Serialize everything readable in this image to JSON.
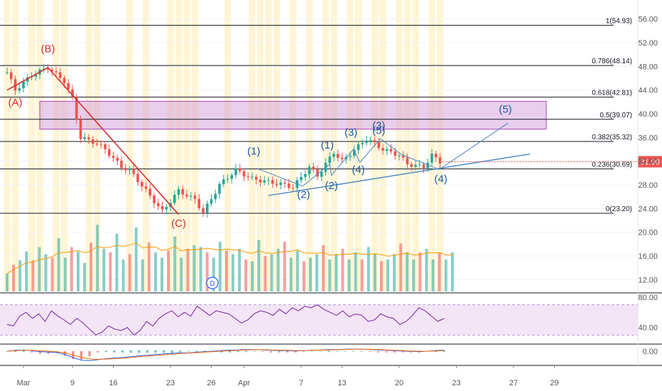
{
  "chart_data": [
    {
      "type": "candlestick",
      "panel": "price",
      "x_ticks": [
        "Mar",
        "9",
        "16",
        "23",
        "26",
        "Apr",
        "7",
        "13",
        "20",
        "23",
        "27",
        "29"
      ],
      "y_ticks": [
        "56.00",
        "52.00",
        "48.00",
        "44.00",
        "40.00",
        "36.00",
        "32.00",
        "28.00",
        "24.00",
        "20.00",
        "16.00",
        "12.00"
      ],
      "ylim": [
        10,
        58
      ],
      "last_price": {
        "value": 31.9,
        "label": "31.90",
        "color": "#ef5350"
      },
      "price_path": [
        {
          "day": 0,
          "close": 47.0
        },
        {
          "day": 1,
          "close": 44.0
        },
        {
          "day": 3,
          "close": 46.5
        },
        {
          "day": 5,
          "close": 47.8
        },
        {
          "day": 7,
          "close": 45.5
        },
        {
          "day": 8,
          "close": 42.5
        },
        {
          "day": 9,
          "close": 36.0
        },
        {
          "day": 11,
          "close": 35.0
        },
        {
          "day": 12,
          "close": 34.0
        },
        {
          "day": 14,
          "close": 31.0
        },
        {
          "day": 15,
          "close": 30.5
        },
        {
          "day": 17,
          "close": 27.0
        },
        {
          "day": 19,
          "close": 23.5
        },
        {
          "day": 21,
          "close": 27.0
        },
        {
          "day": 23,
          "close": 25.5
        },
        {
          "day": 24,
          "close": 23.3
        },
        {
          "day": 26,
          "close": 28.0
        },
        {
          "day": 28,
          "close": 30.5
        },
        {
          "day": 30,
          "close": 29.0
        },
        {
          "day": 32,
          "close": 28.5
        },
        {
          "day": 34,
          "close": 28.0
        },
        {
          "day": 35,
          "close": 27.6
        },
        {
          "day": 37,
          "close": 31.0
        },
        {
          "day": 38,
          "close": 29.5
        },
        {
          "day": 40,
          "close": 33.5
        },
        {
          "day": 41,
          "close": 32.0
        },
        {
          "day": 43,
          "close": 34.5
        },
        {
          "day": 44,
          "close": 35.8
        },
        {
          "day": 46,
          "close": 34.0
        },
        {
          "day": 48,
          "close": 33.0
        },
        {
          "day": 49,
          "close": 31.5
        },
        {
          "day": 51,
          "close": 31.0
        },
        {
          "day": 52,
          "close": 33.0
        },
        {
          "day": 53,
          "close": 31.9
        }
      ],
      "fibonacci": [
        {
          "level": 1,
          "price": 54.93,
          "label": "1(54.93)"
        },
        {
          "level": 0.786,
          "price": 48.14,
          "label": "0.786(48.14)"
        },
        {
          "level": 0.618,
          "price": 42.81,
          "label": "0.618(42.81)"
        },
        {
          "level": 0.5,
          "price": 39.07,
          "label": "0.5(39.07)"
        },
        {
          "level": 0.382,
          "price": 35.32,
          "label": "0.382(35.32)"
        },
        {
          "level": 0.236,
          "price": 30.69,
          "label": "0.236(30.69)"
        },
        {
          "level": 0,
          "price": 23.2,
          "label": "0(23.20)"
        }
      ],
      "zone": {
        "from_day": 4,
        "to_day": 66,
        "price_low": 37.4,
        "price_high": 42.1,
        "color": "#ce93d8"
      },
      "abc_waves": [
        {
          "label": "(A)",
          "day": 1,
          "price": 44.0,
          "text_price": 41.3,
          "color": "#d32f2f"
        },
        {
          "label": "(B)",
          "day": 5,
          "price": 47.8,
          "text_price": 50.4,
          "color": "#d32f2f"
        },
        {
          "label": "(C)",
          "day": 21,
          "price": 23.0,
          "text_price": 20.9,
          "color": "#d32f2f"
        }
      ],
      "impulse_waves": [
        {
          "label": "(1)",
          "day": 30.2,
          "text_price": 33.1
        },
        {
          "label": "(2)",
          "day": 36.3,
          "text_price": 25.8
        },
        {
          "label": "(1)",
          "day": 39.2,
          "text_price": 34.1
        },
        {
          "label": "(2)",
          "day": 39.7,
          "text_price": 27.3
        },
        {
          "label": "(3)",
          "day": 42.1,
          "text_price": 36.3
        },
        {
          "label": "(4)",
          "day": 43.0,
          "text_price": 30.0
        },
        {
          "label": "(3)",
          "day": 45.5,
          "text_price": 37.4
        },
        {
          "label": "(5)",
          "day": 45.5,
          "text_price": 36.6
        },
        {
          "label": "(4)",
          "day": 53.1,
          "text_price": 28.4
        },
        {
          "label": "(5)",
          "day": 61.0,
          "text_price": 40.2
        }
      ],
      "wave_path": [
        {
          "day": 30.5,
          "price": 30.8
        },
        {
          "day": 36.2,
          "price": 27.8
        },
        {
          "day": 39.5,
          "price": 31.5
        },
        {
          "day": 39.7,
          "price": 29.6
        },
        {
          "day": 42.4,
          "price": 34.0
        },
        {
          "day": 43.2,
          "price": 31.8
        },
        {
          "day": 45.7,
          "price": 35.8
        },
        {
          "day": 48.3,
          "price": 33.1
        },
        {
          "day": 52.9,
          "price": 30.6
        },
        {
          "day": 61.3,
          "price": 38.4
        }
      ],
      "trendline": [
        {
          "day": 32,
          "price": 26.2
        },
        {
          "day": 64,
          "price": 33.2
        }
      ],
      "abc_line": [
        {
          "day": 0,
          "price": 44.0
        },
        {
          "day": 5,
          "price": 47.8
        },
        {
          "day": 21,
          "price": 23.0
        }
      ],
      "wave_color": "#1e5aa8",
      "trendline_color": "#4a87c4",
      "highlight_days": [
        0,
        1,
        3,
        4,
        6,
        7,
        10,
        11,
        15,
        17,
        20,
        21,
        22,
        23,
        27,
        30,
        31,
        32,
        33,
        35,
        37,
        39,
        40,
        42,
        43,
        45,
        46,
        48,
        49,
        50,
        52,
        53
      ]
    },
    {
      "type": "bar",
      "panel": "volume",
      "values": [
        2,
        3,
        3.5,
        4.5,
        3.5,
        5,
        4.2,
        3.8,
        6,
        3.8,
        5,
        4.5,
        3.2,
        5.5,
        7.5,
        4.8,
        4.4,
        6.5,
        3.6,
        4.2,
        7.2,
        3.6,
        5.5,
        4.4,
        3.8,
        4.6,
        6.2,
        3.8,
        4.8,
        5.2,
        5,
        4.4,
        3.8,
        5.6,
        4.6,
        4.2,
        4.8,
        3.6,
        3.4,
        5.8,
        4,
        4.2,
        4.8,
        5.6,
        3.8,
        4.6,
        3.4,
        3.8,
        4.2,
        5.2,
        3.6,
        4.2,
        4.8,
        3.6,
        4.4,
        3.6,
        5,
        4.2,
        3.4,
        3.6,
        4.2,
        5.4,
        4.4,
        3.6,
        4.4,
        4.8,
        3.6,
        4.4,
        3.6,
        4.4
      ],
      "up_color": "#26a69a",
      "down_color": "#ef5350",
      "ma_color": "#ff9800",
      "marker": "D"
    },
    {
      "type": "line",
      "panel": "rsi",
      "y_ticks": [
        "80.00",
        "40.00"
      ],
      "ylim": [
        20,
        80
      ],
      "band": [
        30,
        70
      ],
      "values": [
        44,
        42,
        55,
        60,
        52,
        58,
        48,
        62,
        55,
        50,
        44,
        52,
        46,
        38,
        30,
        34,
        42,
        38,
        36,
        40,
        30,
        36,
        48,
        42,
        52,
        58,
        62,
        54,
        60,
        55,
        68,
        62,
        56,
        62,
        60,
        58,
        52,
        46,
        50,
        58,
        62,
        60,
        56,
        64,
        58,
        66,
        62,
        68,
        66,
        70,
        64,
        60,
        56,
        62,
        54,
        58,
        56,
        48,
        50,
        58,
        54,
        52,
        44,
        48,
        56,
        66,
        62,
        55,
        48,
        52
      ],
      "line_color": "#7b1fa2"
    },
    {
      "type": "line",
      "panel": "macd",
      "y_ticks": [
        "0.00"
      ],
      "ylim": [
        -6,
        3
      ],
      "macd": [
        0,
        0.4,
        0.6,
        0.2,
        -0.2,
        -0.4,
        -0.6,
        -1.5,
        -3,
        -4.2,
        -4.4,
        -4,
        -3.5,
        -3.2,
        -3,
        -2.6,
        -2.2,
        -1.9,
        -1.6,
        -1.3,
        -1,
        -0.8,
        -0.8,
        -0.5,
        -0.2,
        0,
        0.3,
        0.5,
        0.6,
        0.8,
        0.8,
        0.6,
        0.4,
        0.3,
        0.2,
        0.1,
        0.3,
        0.5,
        0.6,
        0.8,
        0.8,
        0.9,
        1,
        0.9,
        0.8,
        0.6,
        0.4,
        0.2,
        0.1,
        -0.1,
        -0.2,
        0,
        0.3,
        0.5
      ],
      "signal": [
        0,
        0.2,
        0.4,
        0.4,
        0.2,
        0,
        -0.3,
        -0.8,
        -1.8,
        -2.9,
        -3.6,
        -3.8,
        -3.7,
        -3.5,
        -3.3,
        -3,
        -2.6,
        -2.3,
        -2,
        -1.7,
        -1.4,
        -1.1,
        -0.9,
        -0.7,
        -0.4,
        -0.2,
        0,
        0.2,
        0.4,
        0.6,
        0.7,
        0.7,
        0.6,
        0.5,
        0.4,
        0.3,
        0.3,
        0.4,
        0.5,
        0.6,
        0.7,
        0.8,
        0.9,
        0.9,
        0.9,
        0.8,
        0.6,
        0.4,
        0.3,
        0.1,
        0,
        0,
        0.1,
        0.3
      ],
      "macd_color": "#2962ff",
      "signal_color": "#ff6d00"
    }
  ],
  "x_axis": {
    "labels": [
      "Mar",
      "9",
      "16",
      "23",
      "26",
      "Apr",
      "7",
      "13",
      "20",
      "23",
      "27",
      "29"
    ],
    "label_days": [
      2,
      8,
      13,
      20,
      25,
      29,
      36,
      41,
      48,
      55,
      62,
      67
    ]
  }
}
